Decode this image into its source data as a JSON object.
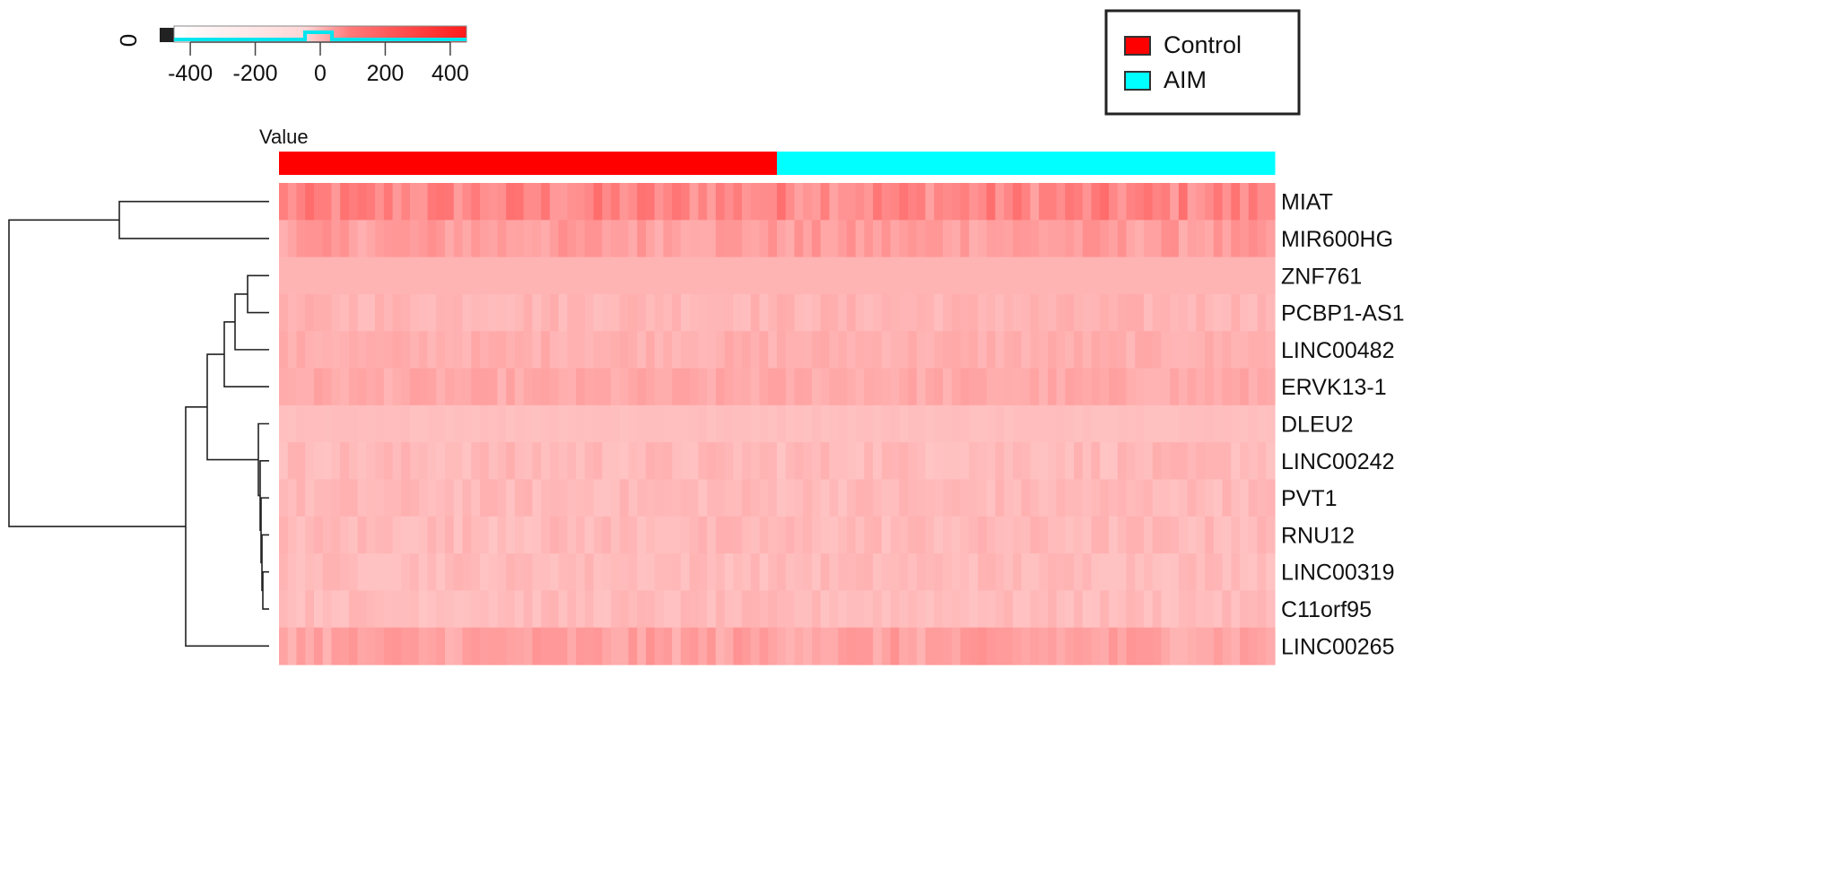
{
  "chart_data": {
    "type": "heatmap",
    "value_label": "Value",
    "color_key": {
      "ticks": [
        -400,
        -200,
        0,
        200,
        400
      ],
      "range": [
        -450,
        450
      ],
      "side_label": "0",
      "low_color": "#ffffff",
      "high_color": "#ff1a1a",
      "histogram_color": "#00e5ee"
    },
    "legend": {
      "position": "top-right",
      "items": [
        {
          "label": "Control",
          "color": "#ff0000"
        },
        {
          "label": "AIM",
          "color": "#00ffff"
        }
      ]
    },
    "groups": [
      {
        "name": "Control",
        "color": "#ff0000",
        "columns": 57
      },
      {
        "name": "AIM",
        "color": "#00ffff",
        "columns": 57
      }
    ],
    "rows": [
      {
        "label": "MIAT",
        "base": 240,
        "var": 55
      },
      {
        "label": "MIR600HG",
        "base": 195,
        "var": 35
      },
      {
        "label": "ZNF761",
        "base": 150,
        "var": 0
      },
      {
        "label": "PCBP1-AS1",
        "base": 150,
        "var": 20
      },
      {
        "label": "LINC00482",
        "base": 160,
        "var": 18
      },
      {
        "label": "ERVK13-1",
        "base": 170,
        "var": 22
      },
      {
        "label": "DLEU2",
        "base": 130,
        "var": 5
      },
      {
        "label": "LINC00242",
        "base": 140,
        "var": 22
      },
      {
        "label": "PVT1",
        "base": 140,
        "var": 20
      },
      {
        "label": "RNU12",
        "base": 140,
        "var": 22
      },
      {
        "label": "LINC00319",
        "base": 138,
        "var": 18
      },
      {
        "label": "C11orf95",
        "base": 136,
        "var": 18
      },
      {
        "label": "LINC00265",
        "base": 185,
        "var": 35
      }
    ]
  }
}
